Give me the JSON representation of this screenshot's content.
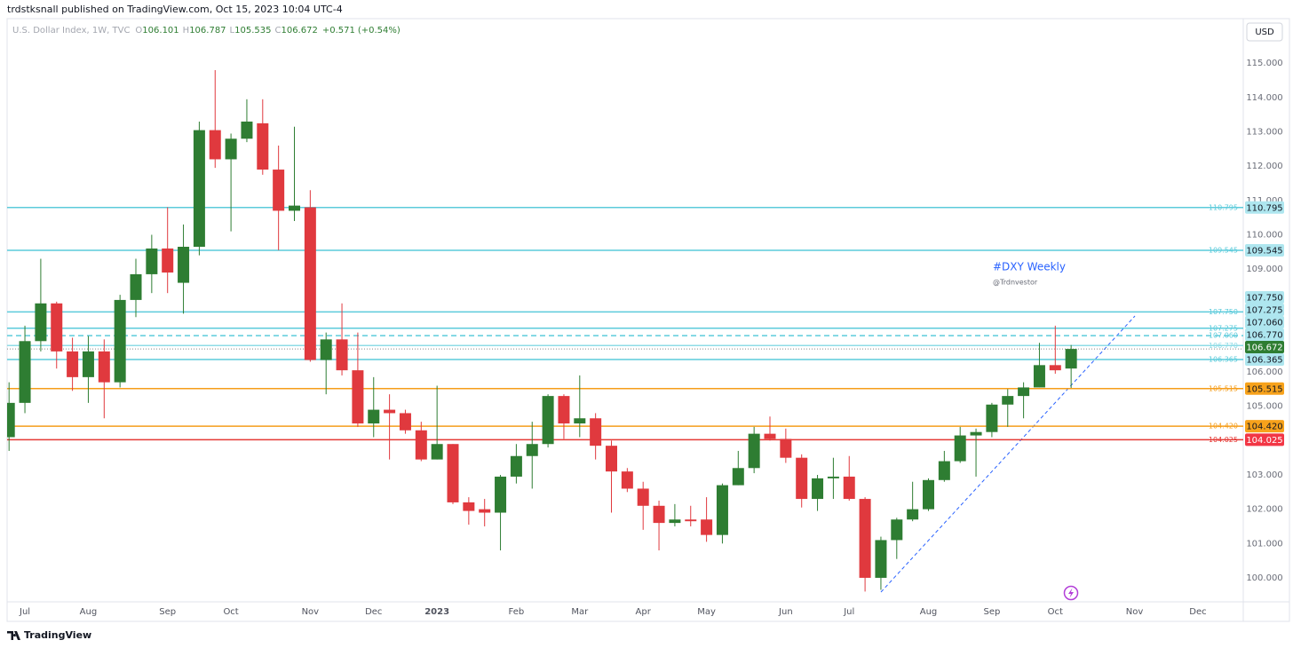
{
  "header": "trdstksnall published on TradingView.com, Oct 15, 2023 10:04 UTC-4",
  "footer": "TradingView",
  "currency": "USD",
  "chart_data": {
    "type": "candlestick",
    "legend": {
      "symbol": "U.S. Dollar Index, 1W, TVC",
      "ohlc_prefixes": [
        "O",
        "H",
        "L",
        "C"
      ],
      "change": {
        "value": 0.571,
        "label": "+0.571"
      },
      "change_percent": {
        "value": 0.54,
        "label": "(+0.54%)"
      }
    },
    "categories": [
      null,
      "Jul",
      null,
      null,
      null,
      "Aug",
      null,
      null,
      null,
      null,
      "Sep",
      null,
      null,
      null,
      "Oct",
      null,
      null,
      null,
      null,
      "Nov",
      null,
      null,
      null,
      "Dec",
      null,
      null,
      null,
      "2023",
      null,
      null,
      null,
      null,
      "Feb",
      null,
      null,
      null,
      "Mar",
      null,
      null,
      null,
      "Apr",
      null,
      null,
      null,
      "May",
      null,
      null,
      null,
      null,
      "Jun",
      null,
      null,
      null,
      "Jul",
      null,
      null,
      null,
      null,
      "Aug",
      null,
      null,
      null,
      "Sep",
      null,
      null,
      null,
      "Oct",
      null,
      null,
      null,
      null,
      "Nov",
      null,
      null,
      null,
      "Dec",
      null,
      null
    ],
    "open": [
      104.1,
      105.1,
      106.9,
      108.0,
      106.6,
      105.85,
      106.6,
      105.7,
      108.1,
      108.85,
      109.6,
      108.6,
      109.65,
      113.05,
      112.2,
      112.8,
      113.25,
      111.9,
      110.7,
      110.8,
      106.35,
      106.95,
      106.05,
      104.5,
      104.9,
      104.8,
      104.3,
      103.45,
      103.9,
      102.2,
      102.0,
      101.9,
      102.95,
      103.55,
      103.9,
      105.3,
      104.5,
      104.65,
      103.85,
      103.1,
      102.6,
      102.1,
      101.6,
      101.7,
      101.7,
      101.25,
      102.7,
      103.2,
      104.2,
      104.05,
      103.5,
      102.3,
      102.9,
      102.95,
      102.3,
      100.0,
      101.1,
      101.7,
      102.0,
      102.85,
      103.4,
      104.15,
      104.25,
      105.05,
      105.3,
      105.55,
      106.2,
      106.101,
      null,
      null,
      null,
      null,
      null,
      null,
      null,
      null,
      null,
      null
    ],
    "high": [
      105.7,
      107.35,
      109.3,
      108.05,
      107.0,
      107.05,
      106.95,
      108.25,
      109.3,
      110.0,
      110.8,
      110.3,
      113.3,
      114.8,
      112.95,
      113.95,
      113.95,
      112.6,
      113.15,
      111.3,
      107.15,
      108.0,
      107.15,
      105.85,
      105.35,
      104.9,
      104.55,
      105.6,
      103.9,
      102.35,
      102.3,
      103.0,
      103.9,
      104.55,
      105.35,
      105.35,
      105.9,
      104.8,
      104.0,
      103.2,
      102.8,
      102.25,
      102.15,
      102.1,
      102.35,
      102.75,
      103.7,
      104.4,
      104.7,
      104.35,
      103.6,
      103.0,
      103.5,
      103.55,
      102.35,
      101.2,
      101.75,
      102.8,
      102.9,
      103.7,
      104.4,
      104.35,
      105.1,
      105.5,
      105.7,
      106.85,
      107.35,
      106.787,
      null,
      null,
      null,
      null,
      null,
      null,
      null,
      null,
      null,
      null
    ],
    "low": [
      103.7,
      104.8,
      106.6,
      106.1,
      105.45,
      105.1,
      104.65,
      105.55,
      107.6,
      108.3,
      108.3,
      107.7,
      109.4,
      111.95,
      110.1,
      112.7,
      111.75,
      109.55,
      110.4,
      106.3,
      105.35,
      105.9,
      104.4,
      104.1,
      103.45,
      104.2,
      103.4,
      103.45,
      102.15,
      101.55,
      101.5,
      100.8,
      102.75,
      102.6,
      103.8,
      104.05,
      104.1,
      103.45,
      101.9,
      102.5,
      101.4,
      100.8,
      101.5,
      101.5,
      101.05,
      101.0,
      102.7,
      103.05,
      104.0,
      103.35,
      102.05,
      101.95,
      102.3,
      102.25,
      99.6,
      99.65,
      100.55,
      101.65,
      101.95,
      102.8,
      103.35,
      102.95,
      104.1,
      104.4,
      104.65,
      105.55,
      105.95,
      105.535,
      null,
      null,
      null,
      null,
      null,
      null,
      null,
      null,
      null,
      null
    ],
    "close": [
      105.1,
      106.9,
      108.0,
      106.6,
      105.85,
      106.6,
      105.7,
      108.1,
      108.85,
      109.6,
      108.9,
      109.65,
      113.05,
      112.2,
      112.8,
      113.3,
      111.9,
      110.7,
      110.85,
      106.35,
      106.95,
      106.05,
      104.5,
      104.9,
      104.8,
      104.3,
      103.45,
      103.9,
      102.2,
      101.95,
      101.9,
      102.95,
      103.55,
      103.9,
      105.3,
      104.5,
      104.65,
      103.85,
      103.1,
      102.6,
      102.1,
      101.6,
      101.7,
      101.65,
      101.25,
      102.7,
      103.2,
      104.2,
      104.05,
      103.5,
      102.3,
      102.9,
      102.95,
      102.3,
      100.0,
      101.1,
      101.7,
      102.0,
      102.85,
      103.4,
      104.15,
      104.25,
      105.05,
      105.3,
      105.55,
      106.2,
      106.05,
      106.672,
      null,
      null,
      null,
      null,
      null,
      null,
      null,
      null,
      null,
      null
    ],
    "up_color": "#2e7d32",
    "down_color": "#e0393e",
    "ylim": [
      99.3,
      116.3
    ],
    "yticks": [
      {
        "value": 100,
        "label": "100.000"
      },
      {
        "value": 101,
        "label": "101.000"
      },
      {
        "value": 102,
        "label": "102.000"
      },
      {
        "value": 103,
        "label": "103.000"
      },
      {
        "value": 104,
        "label": "104.000"
      },
      {
        "value": 105,
        "label": "105.000"
      },
      {
        "value": 106,
        "label": "106.000"
      },
      {
        "value": 107,
        "label": "107.000"
      },
      {
        "value": 108,
        "label": "108.000"
      },
      {
        "value": 109,
        "label": "109.000"
      },
      {
        "value": 110,
        "label": "110.000"
      },
      {
        "value": 111,
        "label": "111.000"
      },
      {
        "value": 112,
        "label": "112.000"
      },
      {
        "value": 113,
        "label": "113.000"
      },
      {
        "value": 114,
        "label": "114.000"
      },
      {
        "value": 115,
        "label": "115.000"
      }
    ],
    "grid": false,
    "last_price_line": true,
    "levels": [
      {
        "value": 110.795,
        "color": "#5ccbdb",
        "style": "solid",
        "badge_color": "#aee6ef",
        "badge_text_color": "#131722"
      },
      {
        "value": 109.545,
        "color": "#5ccbdb",
        "style": "solid",
        "badge_color": "#aee6ef",
        "badge_text_color": "#131722"
      },
      {
        "value": 107.75,
        "label": "107.750",
        "color": "#5ccbdb",
        "style": "solid",
        "badge_color": "#aee6ef",
        "badge_text_color": "#131722"
      },
      {
        "value": 107.275,
        "color": "#5ccbdb",
        "style": "solid",
        "badge_color": "#aee6ef",
        "badge_text_color": "#131722"
      },
      {
        "value": 107.06,
        "label": "107.060",
        "color": "#5ccbdb",
        "style": "dashed",
        "badge_color": "#aee6ef",
        "badge_text_color": "#131722"
      },
      {
        "value": 106.77,
        "label": "106.770",
        "color": "#8fdce6",
        "style": "solid",
        "badge_color": "#aee6ef",
        "badge_text_color": "#131722"
      },
      {
        "value": 106.365,
        "color": "#5ccbdb",
        "style": "solid",
        "badge_color": "#aee6ef",
        "badge_text_color": "#131722"
      },
      {
        "value": 105.515,
        "color": "#f59d1a",
        "style": "solid",
        "badge_color": "#f7a21b",
        "badge_text_color": "#131722"
      },
      {
        "value": 104.42,
        "label": "104.420",
        "color": "#f59d1a",
        "style": "solid",
        "badge_color": "#f7a21b",
        "badge_text_color": "#131722"
      },
      {
        "value": 104.025,
        "color": "#e53935",
        "style": "solid",
        "badge_color": "#f23645",
        "badge_text_color": "#ffffff"
      }
    ],
    "annotations": [
      {
        "text": "#DXY Weekly"
      },
      {
        "text": "@Trdnvestor"
      }
    ]
  }
}
